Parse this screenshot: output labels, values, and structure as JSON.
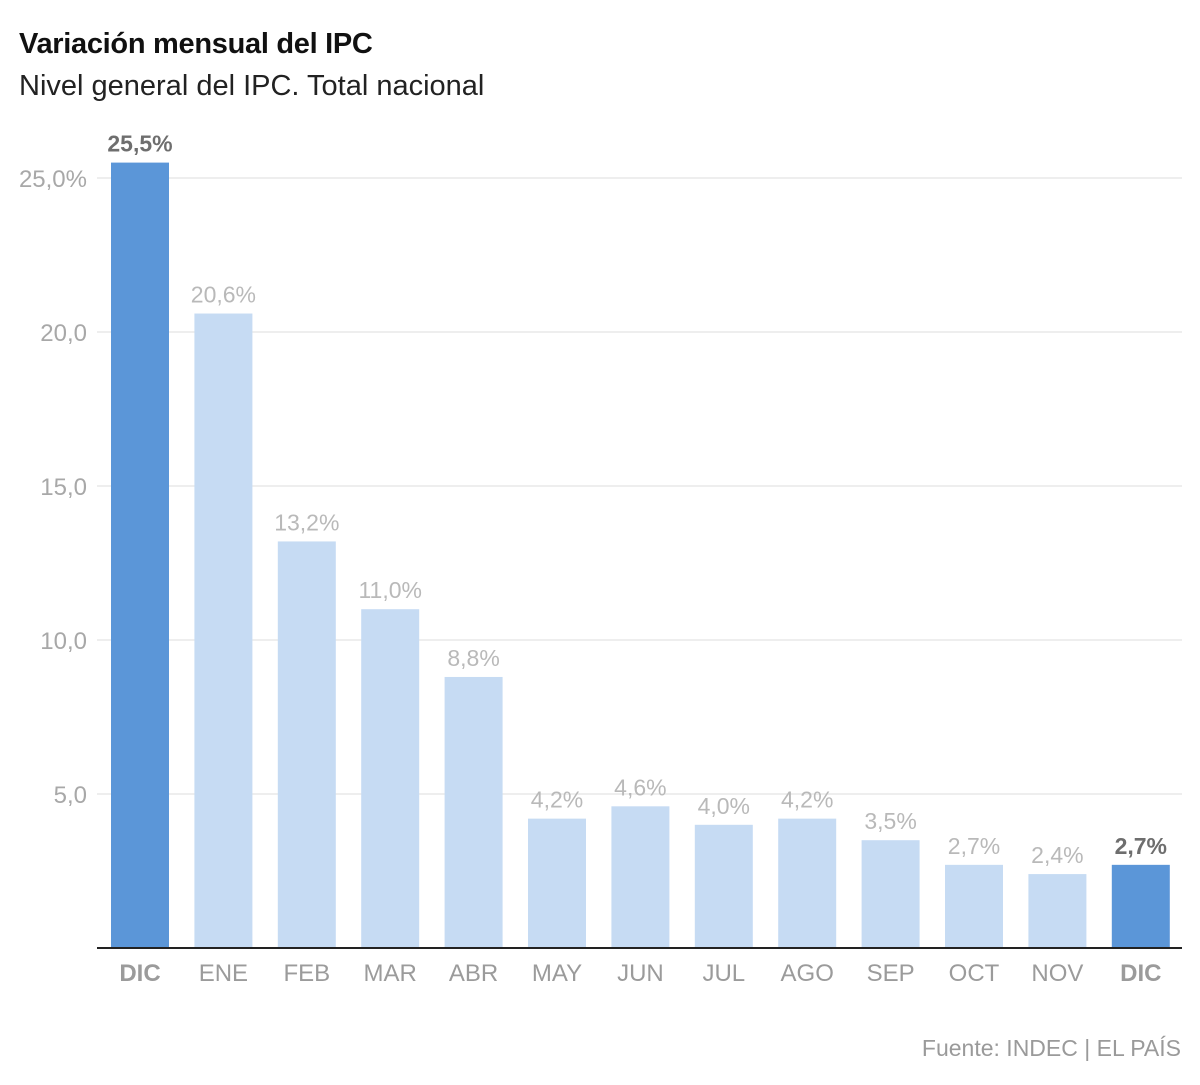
{
  "title": "Variación mensual del IPC",
  "subtitle": "Nivel general del IPC. Total nacional",
  "source": "Fuente: INDEC | EL PAÍS",
  "colors": {
    "highlight_bar": "#5b96d8",
    "normal_bar": "#c6dbf3",
    "highlight_label": "#6e6e6e",
    "normal_label": "#b9b9b9",
    "tick_label": "#a8a8a8",
    "category_label": "#9b9b9b",
    "gridline": "#dedede",
    "baseline": "#222222"
  },
  "chart_data": {
    "type": "bar",
    "title": "Variación mensual del IPC",
    "subtitle": "Nivel general del IPC. Total nacional",
    "xlabel": "",
    "ylabel": "",
    "categories": [
      "DIC",
      "ENE",
      "FEB",
      "MAR",
      "ABR",
      "MAY",
      "JUN",
      "JUL",
      "AGO",
      "SEP",
      "OCT",
      "NOV",
      "DIC"
    ],
    "values": [
      25.5,
      20.6,
      13.2,
      11.0,
      8.8,
      4.2,
      4.6,
      4.0,
      4.2,
      3.5,
      2.7,
      2.4,
      2.7
    ],
    "data_labels": [
      "25,5%",
      "20,6%",
      "13,2%",
      "11,0%",
      "8,8%",
      "4,2%",
      "4,6%",
      "4,0%",
      "4,2%",
      "3,5%",
      "2,7%",
      "2,4%",
      "2,7%"
    ],
    "highlighted": [
      true,
      false,
      false,
      false,
      false,
      false,
      false,
      false,
      false,
      false,
      false,
      false,
      true
    ],
    "yticks": [
      5,
      10,
      15,
      20,
      25
    ],
    "ytick_labels": [
      "5,0",
      "10,0",
      "15,0",
      "20,0",
      "25,0%"
    ],
    "ylim": [
      0,
      25.5
    ],
    "grid": true,
    "legend": "none"
  }
}
